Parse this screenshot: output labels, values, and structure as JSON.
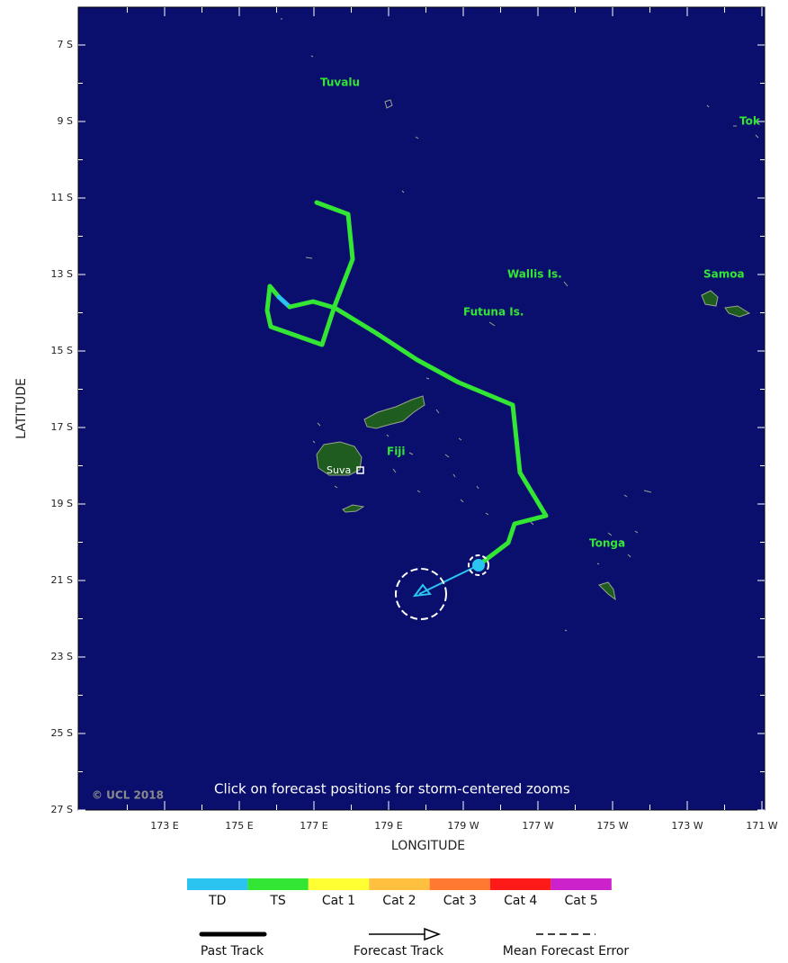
{
  "axes": {
    "x_label": "LONGITUDE",
    "y_label": "LATITUDE",
    "lat_ticks": [
      "7 S",
      "9 S",
      "11 S",
      "13 S",
      "15 S",
      "17 S",
      "19 S",
      "21 S",
      "23 S",
      "25 S",
      "27 S"
    ],
    "lon_ticks": [
      "173 E",
      "175 E",
      "177 E",
      "179 E",
      "179 W",
      "177 W",
      "175 W",
      "173 W",
      "171 W"
    ]
  },
  "places": {
    "tuvalu": "Tuvalu",
    "tokelau": "Tok",
    "wallis": "Wallis Is.",
    "samoa": "Samoa",
    "futuna": "Futuna Is.",
    "fiji": "Fiji",
    "suva": "Suva",
    "tonga": "Tonga"
  },
  "caption": "Click on forecast positions for storm-centered zooms",
  "copyright": "© UCL 2018",
  "intensity_legend": [
    {
      "label": "TD",
      "color": "#2bc4f0"
    },
    {
      "label": "TS",
      "color": "#33e633"
    },
    {
      "label": "Cat 1",
      "color": "#ffff33"
    },
    {
      "label": "Cat 2",
      "color": "#ffc040"
    },
    {
      "label": "Cat 3",
      "color": "#ff7a30"
    },
    {
      "label": "Cat 4",
      "color": "#ff1a1a"
    },
    {
      "label": "Cat 5",
      "color": "#cc22cc"
    }
  ],
  "track_legend": {
    "past": "Past Track",
    "forecast": "Forecast Track",
    "error": "Mean Forecast Error"
  }
}
